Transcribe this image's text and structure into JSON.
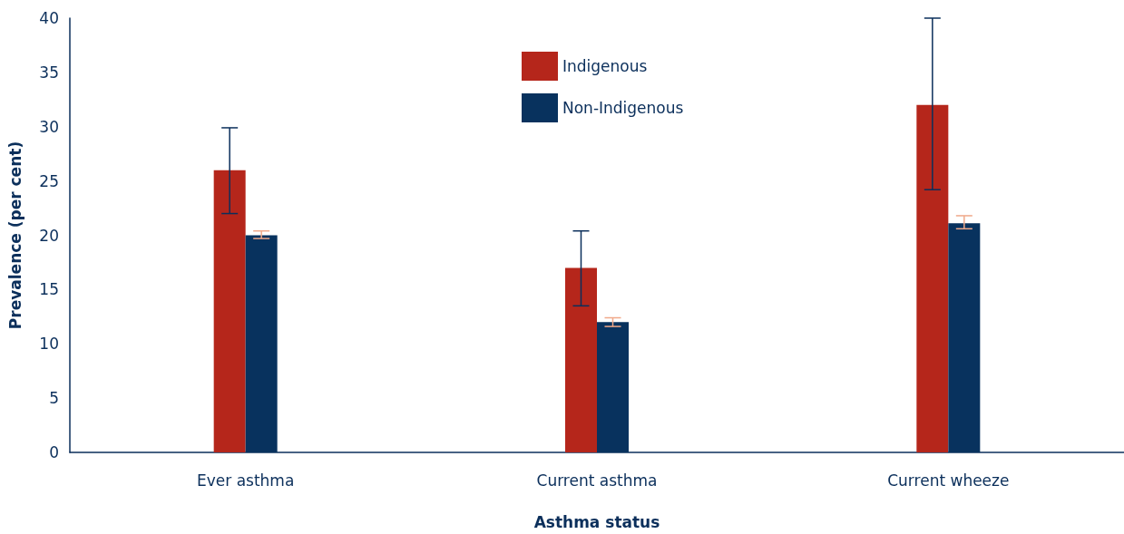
{
  "chart_data": {
    "type": "bar",
    "xlabel": "Asthma status",
    "ylabel": "Prevalence (per cent)",
    "categories": [
      "Ever asthma",
      "Current asthma",
      "Current wheeze"
    ],
    "series": [
      {
        "name": "Indigenous",
        "color": "#b5261b",
        "values": [
          26.0,
          17.0,
          32.0
        ],
        "errors": [
          [
            22.0,
            29.9
          ],
          [
            13.5,
            20.4
          ],
          [
            24.2,
            40
          ]
        ]
      },
      {
        "name": "Non-Indigenous",
        "color": "#08325e",
        "values": [
          20.0,
          12.0,
          21.1
        ],
        "errors": [
          [
            19.7,
            20.4
          ],
          [
            11.6,
            12.4
          ],
          [
            20.6,
            21.8
          ]
        ]
      }
    ],
    "ylim": [
      0,
      40
    ],
    "yticks": [
      0,
      5,
      10,
      15,
      20,
      25,
      30,
      35,
      40
    ],
    "grid": false,
    "legend": "top"
  }
}
